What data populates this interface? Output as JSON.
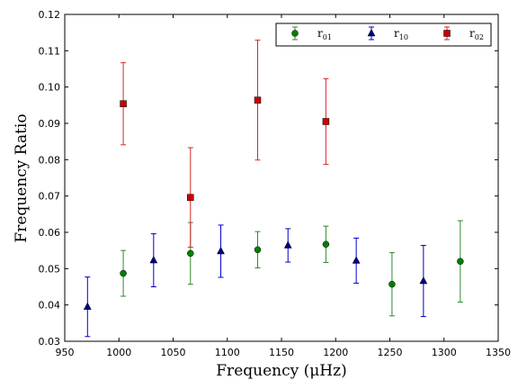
{
  "chart_data": {
    "type": "scatter",
    "title": "",
    "xlabel": "Frequency  (μHz)",
    "ylabel": "Frequency Ratio",
    "xlim": [
      950,
      1350
    ],
    "ylim": [
      0.03,
      0.12
    ],
    "xticks": [
      950,
      1000,
      1050,
      1100,
      1150,
      1200,
      1250,
      1300,
      1350
    ],
    "yticks": [
      0.03,
      0.04,
      0.05,
      0.06,
      0.07,
      0.08,
      0.09,
      0.1,
      0.11,
      0.12
    ],
    "xtick_labels": [
      "950",
      "1000",
      "1050",
      "1100",
      "1150",
      "1200",
      "1250",
      "1300",
      "1350"
    ],
    "ytick_labels": [
      "0.03",
      "0.04",
      "0.05",
      "0.06",
      "0.07",
      "0.08",
      "0.09",
      "0.10",
      "0.11",
      "0.12"
    ],
    "grid": false,
    "legend_position": "top-right",
    "error_bars": true,
    "series": [
      {
        "name": "r01",
        "name_base": "r",
        "name_sub": "01",
        "marker": "circle",
        "color": "#008000",
        "errcolor": "#2e8b2e",
        "points": [
          {
            "x": 1004,
            "y": 0.0487,
            "err": 0.0063
          },
          {
            "x": 1066,
            "y": 0.0542,
            "err": 0.0085
          },
          {
            "x": 1128,
            "y": 0.0552,
            "err": 0.005
          },
          {
            "x": 1191,
            "y": 0.0567,
            "err": 0.005
          },
          {
            "x": 1252,
            "y": 0.0457,
            "err": 0.0087
          },
          {
            "x": 1315,
            "y": 0.052,
            "err": 0.0112
          }
        ]
      },
      {
        "name": "r10",
        "name_base": "r",
        "name_sub": "10",
        "marker": "triangle",
        "color": "#00008b",
        "errcolor": "#0000cd",
        "points": [
          {
            "x": 971,
            "y": 0.0395,
            "err": 0.0082
          },
          {
            "x": 1032,
            "y": 0.0523,
            "err": 0.0073
          },
          {
            "x": 1094,
            "y": 0.0548,
            "err": 0.0072
          },
          {
            "x": 1156,
            "y": 0.0564,
            "err": 0.0046
          },
          {
            "x": 1219,
            "y": 0.0522,
            "err": 0.0062
          },
          {
            "x": 1281,
            "y": 0.0466,
            "err": 0.0098
          }
        ]
      },
      {
        "name": "r02",
        "name_base": "r",
        "name_sub": "02",
        "marker": "square",
        "color": "#cc0000",
        "errcolor": "#d62728",
        "points": [
          {
            "x": 1004,
            "y": 0.0954,
            "err": 0.0113
          },
          {
            "x": 1066,
            "y": 0.0696,
            "err": 0.0137
          },
          {
            "x": 1128,
            "y": 0.0964,
            "err": 0.0165
          },
          {
            "x": 1191,
            "y": 0.0905,
            "err": 0.0118
          }
        ]
      }
    ]
  }
}
